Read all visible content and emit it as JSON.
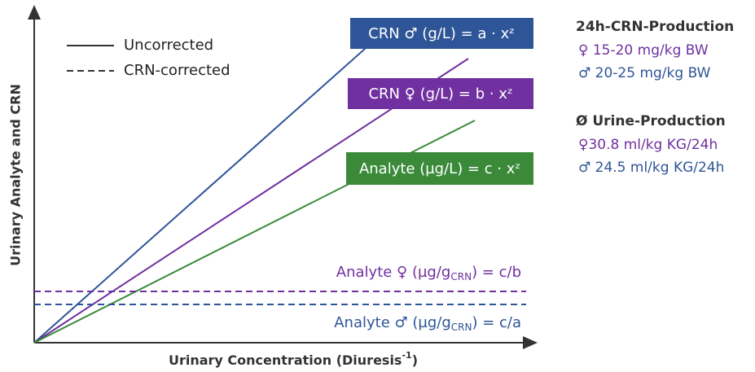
{
  "axes": {
    "y_label": "Urinary Analyte and CRN",
    "x_label": {
      "text": "Urinary Concentration (Diuresis",
      "sup": "-1",
      "end": ")"
    }
  },
  "legend": [
    {
      "label": "Uncorrected"
    },
    {
      "label": "CRN-corrected"
    }
  ],
  "equations": [
    {
      "label": "CRN ♂ (g/L) = a · xᶻ"
    },
    {
      "label": "CRN ♀ (g/L) = b · xᶻ"
    },
    {
      "label": "Analyte (µg/L) = c · xᶻ"
    }
  ],
  "corrected": [
    {
      "prefix": "Analyte ♀ (µg/g",
      "sub": "CRN",
      "suffix": ") = c/b"
    },
    {
      "prefix": "Analyte ♂ (µg/g",
      "sub": "CRN",
      "suffix": ") = c/a"
    }
  ],
  "info": {
    "crn_title": "24h-CRN-Production",
    "crn_female": "♀ 15-20 mg/kg BW",
    "crn_male": "♂ 20-25 mg/kg BW",
    "urine_title": "Ø Urine-Production",
    "urine_female": "♀30.8 ml/kg KG/24h",
    "urine_male": "♂ 24.5 ml/kg KG/24h"
  }
}
